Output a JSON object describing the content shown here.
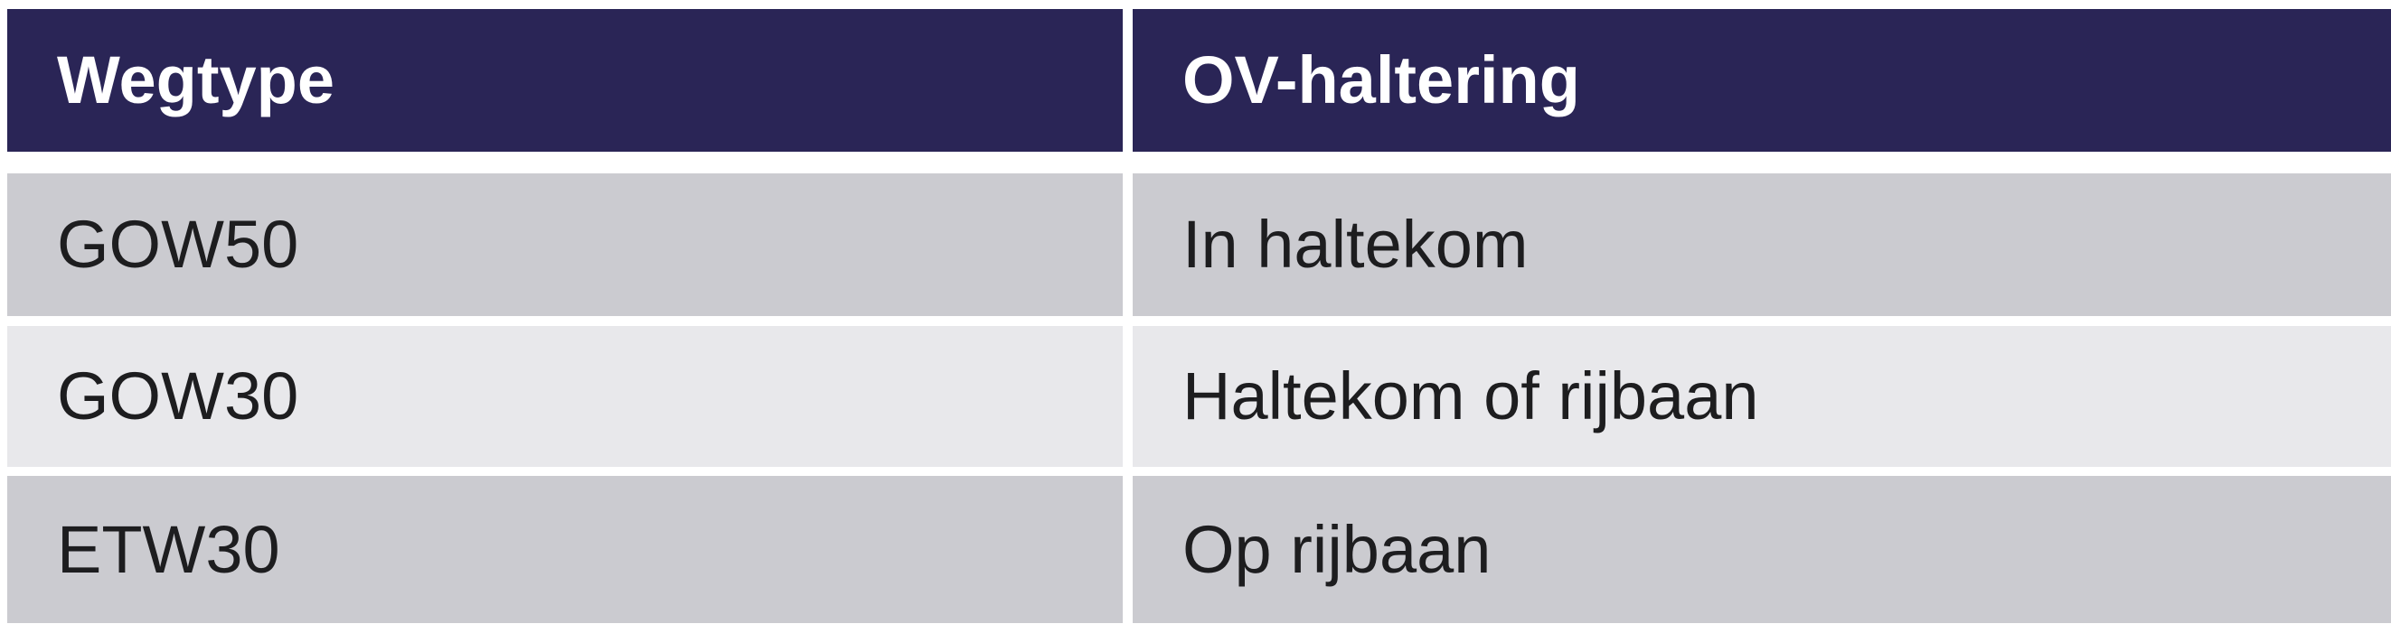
{
  "table": {
    "header": {
      "wegtype": "Wegtype",
      "ov_haltering": "OV-haltering"
    },
    "rows": [
      {
        "wegtype": "GOW50",
        "ov_haltering": "In haltekom"
      },
      {
        "wegtype": "GOW30",
        "ov_haltering": "Haltekom of rijbaan"
      },
      {
        "wegtype": "ETW30",
        "ov_haltering": "Op rijbaan"
      }
    ],
    "colors": {
      "header_bg": "#2a2556",
      "header_text": "#ffffff",
      "row_gray_bg": "#cbcbd0",
      "row_light_bg": "#e8e8eb",
      "cell_text": "#1d1d1f",
      "grid_line": "#ffffff"
    }
  }
}
